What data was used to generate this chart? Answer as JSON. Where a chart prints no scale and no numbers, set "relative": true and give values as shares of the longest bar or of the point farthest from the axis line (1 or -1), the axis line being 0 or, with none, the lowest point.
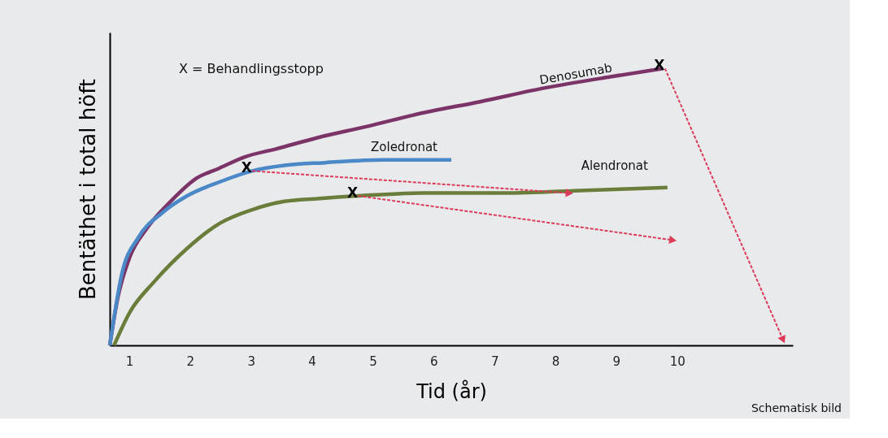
{
  "chart_data": {
    "type": "line",
    "relative": true,
    "xlabel": "Tid (år)",
    "ylabel": "Bentäthet i total höft",
    "xlim": [
      0.68,
      11.9
    ],
    "xticks": [
      1,
      2,
      3,
      4,
      5,
      6,
      7,
      8,
      9,
      10
    ],
    "grid": false,
    "series": [
      {
        "name": "Denosumab",
        "color": "#7b3368",
        "x": [
          0.68,
          0.81,
          1.01,
          1.28,
          1.68,
          2.08,
          2.48,
          2.89,
          3.42,
          4.09,
          4.89,
          5.83,
          6.76,
          7.83,
          8.9,
          9.77
        ],
        "values": [
          0,
          0.17,
          0.32,
          0.42,
          0.52,
          0.6,
          0.64,
          0.68,
          0.71,
          0.75,
          0.79,
          0.84,
          0.88,
          0.93,
          0.97,
          1.0
        ]
      },
      {
        "name": "Zoledronat",
        "color": "#4a88c7",
        "x": [
          0.68,
          0.88,
          1.15,
          1.55,
          1.95,
          2.48,
          3.02,
          3.55,
          4.22,
          5.16,
          6.29
        ],
        "values": [
          0,
          0.26,
          0.39,
          0.48,
          0.54,
          0.59,
          0.63,
          0.65,
          0.66,
          0.67,
          0.67
        ]
      },
      {
        "name": "Alendronat",
        "color": "#6a7d3a",
        "x": [
          0.75,
          1.01,
          1.41,
          1.95,
          2.48,
          3.02,
          3.55,
          4.09,
          4.76,
          5.83,
          7.16,
          8.5,
          9.84
        ],
        "values": [
          0,
          0.12,
          0.23,
          0.35,
          0.44,
          0.49,
          0.52,
          0.53,
          0.54,
          0.55,
          0.55,
          0.56,
          0.57
        ]
      },
      {
        "color": "#dc3c5a",
        "line_style": "dashed",
        "x": [
          3.02,
          8.23
        ],
        "values": [
          0.63,
          0.55
        ]
      },
      {
        "color": "#dc3c5a",
        "line_style": "dashed",
        "x": [
          4.76,
          9.93
        ],
        "values": [
          0.54,
          0.38
        ]
      },
      {
        "color": "#dc3c5a",
        "line_style": "dashed",
        "x": [
          9.8,
          11.74
        ],
        "values": [
          1.0,
          0.02
        ]
      }
    ],
    "annotations": [
      {
        "text": "X",
        "x": 3.02,
        "y": 0.63
      },
      {
        "text": "X",
        "x": 4.76,
        "y": 0.54
      },
      {
        "text": "X",
        "x": 9.8,
        "y": 1.0
      },
      "X = Behandlingsstopp",
      "Schematisk bild"
    ]
  }
}
